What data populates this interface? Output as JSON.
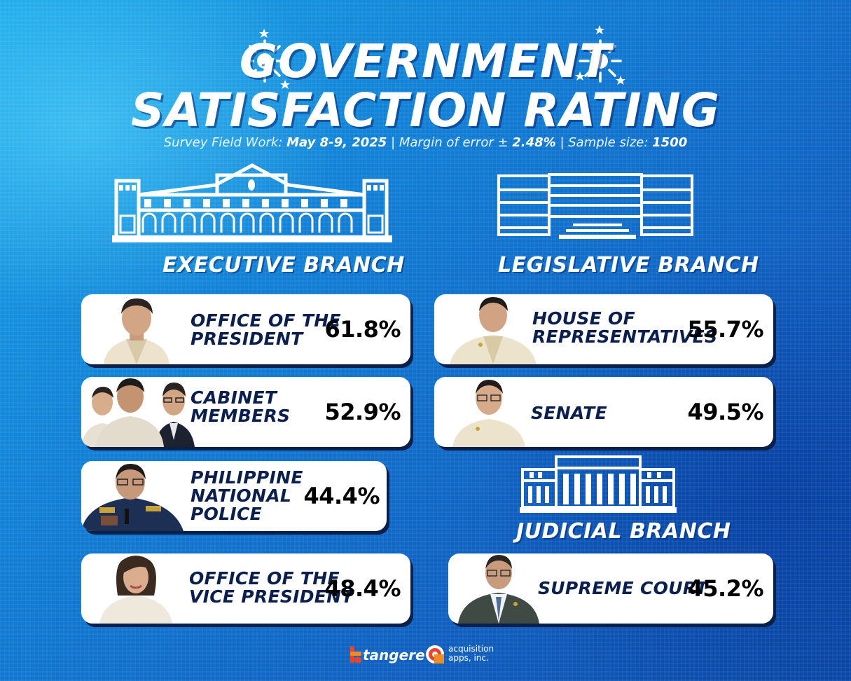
{
  "header": {
    "title_line1": "GOVERNMENT",
    "title_line2": "SATISFACTION RATING",
    "field_work_label": "Survey Field Work:",
    "field_work_value": "May 8-9, 2025",
    "margin_label": "| Margin of error ±",
    "margin_value": "2.48%",
    "sample_label": "| Sample size:",
    "sample_value": "1500"
  },
  "branches": {
    "executive": "EXECUTIVE BRANCH",
    "legislative": "LEGISLATIVE BRANCH",
    "judicial": "JUDICIAL BRANCH"
  },
  "footer": {
    "logo1": "tangere",
    "logo2_line1": "acquisition",
    "logo2_line2": "apps, inc."
  },
  "colors": {
    "background": "#1180d6",
    "card": "#ffffff",
    "card_text": "#0b1f4f",
    "shadow": "#0a1f4a"
  },
  "chart_data": {
    "type": "table",
    "title": "GOVERNMENT SATISFACTION RATING",
    "categories": [
      "OFFICE OF THE PRESIDENT",
      "CABINET MEMBERS",
      "PHILIPPINE NATIONAL POLICE",
      "OFFICE OF THE VICE PRESIDENT",
      "HOUSE OF REPRESENTATIVES",
      "SENATE",
      "SUPREME COURT"
    ],
    "values": [
      61.8,
      52.9,
      44.4,
      48.4,
      55.7,
      49.5,
      45.2
    ],
    "rows": [
      {
        "branch": "EXECUTIVE BRANCH",
        "line1": "OFFICE OF THE",
        "line2": "PRESIDENT",
        "line3": "",
        "value": "61.8%"
      },
      {
        "branch": "EXECUTIVE BRANCH",
        "line1": "CABINET",
        "line2": "MEMBERS",
        "line3": "",
        "value": "52.9%"
      },
      {
        "branch": "EXECUTIVE BRANCH",
        "line1": "PHILIPPINE",
        "line2": "NATIONAL",
        "line3": "POLICE",
        "value": "44.4%"
      },
      {
        "branch": "EXECUTIVE BRANCH",
        "line1": "OFFICE OF THE",
        "line2": "VICE PRESIDENT",
        "line3": "",
        "value": "48.4%"
      },
      {
        "branch": "LEGISLATIVE BRANCH",
        "line1": "HOUSE OF",
        "line2": "REPRESENTATIVES",
        "line3": "",
        "value": "55.7%"
      },
      {
        "branch": "LEGISLATIVE BRANCH",
        "line1": "SENATE",
        "line2": "",
        "line3": "",
        "value": "49.5%"
      },
      {
        "branch": "JUDICIAL BRANCH",
        "line1": "SUPREME COURT",
        "line2": "",
        "line3": "",
        "value": "45.2%"
      }
    ]
  }
}
